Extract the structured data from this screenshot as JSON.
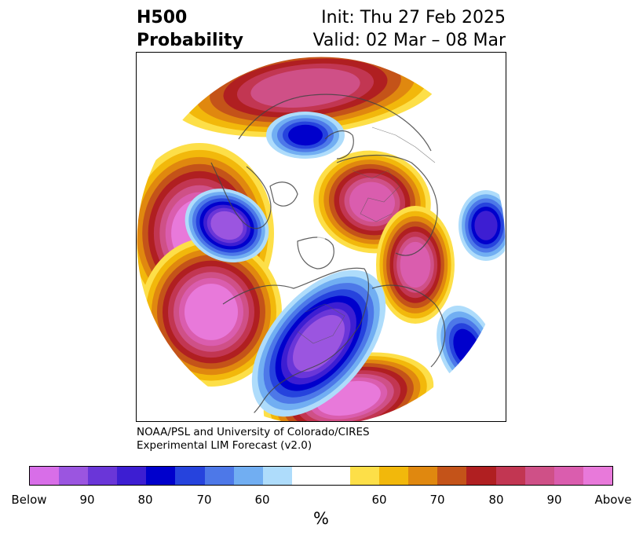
{
  "title": {
    "left_line1": "H500",
    "left_line2": "Probability",
    "right_line1": "Init: Thu 27 Feb 2025",
    "right_line2": "Valid: 02 Mar – 08 Mar"
  },
  "credit": {
    "line1": "NOAA/PSL and University of Colorado/CIRES",
    "line2": "Experimental LIM Forecast (v2.0)"
  },
  "colorbar": {
    "unit": "%",
    "colors": [
      "#d86ee8",
      "#9b55e0",
      "#6a36d8",
      "#3d1ed2",
      "#0000cc",
      "#2643dd",
      "#4d78e8",
      "#71aef2",
      "#aedcfb",
      "#ffffff",
      "#ffffff",
      "#fddf48",
      "#f2b80b",
      "#e0880f",
      "#c45319",
      "#b01f21",
      "#c23652",
      "#cf5087",
      "#da5dae",
      "#e879da"
    ],
    "ticks": [
      "Below",
      "90",
      "80",
      "70",
      "60",
      "60",
      "70",
      "80",
      "90",
      "Above"
    ]
  },
  "map": {
    "projection": "north-polar-stereographic",
    "features": [
      {
        "name": "above-pacific-west",
        "color": "#e879da"
      },
      {
        "name": "above-pacific-east",
        "color": "#e879da"
      },
      {
        "name": "above-arctic-siberia",
        "color": "#c23652"
      },
      {
        "name": "above-europe",
        "color": "#cf5087"
      },
      {
        "name": "above-russia-east",
        "color": "#cf5087"
      },
      {
        "name": "above-atlantic-south",
        "color": "#e879da"
      },
      {
        "name": "below-north-america",
        "color": "#9b55e0"
      },
      {
        "name": "below-east-asia",
        "color": "#9b55e0"
      },
      {
        "name": "below-greenland",
        "color": "#4d78e8"
      },
      {
        "name": "below-central-asia",
        "color": "#4d78e8"
      },
      {
        "name": "below-subtropical-atlantic",
        "color": "#4d78e8"
      }
    ]
  }
}
